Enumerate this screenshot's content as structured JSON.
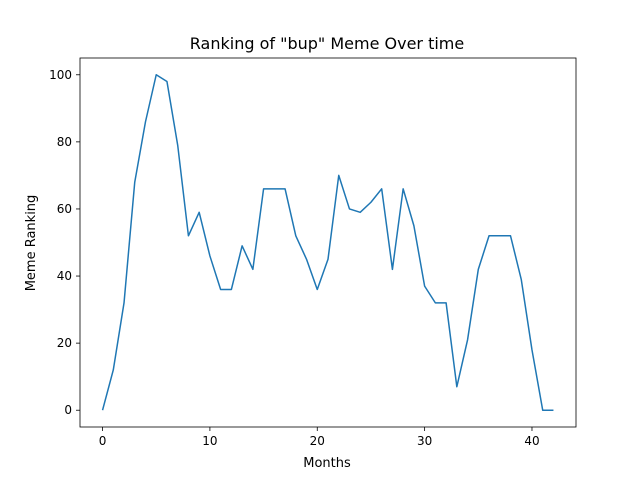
{
  "chart_data": {
    "type": "line",
    "title": "Ranking of \"bup\" Meme Over time",
    "xlabel": "Months",
    "ylabel": "Meme Ranking",
    "xlim": [
      -2.1,
      44.1
    ],
    "ylim": [
      -5,
      105
    ],
    "grid": false,
    "x_ticks": [
      0,
      10,
      20,
      30,
      40
    ],
    "y_ticks": [
      0,
      20,
      40,
      60,
      80,
      100
    ],
    "line_color": "#1f77b4",
    "series": [
      {
        "x": [
          0,
          1,
          2,
          3,
          4,
          5,
          6,
          7,
          8,
          9,
          10,
          11,
          12,
          13,
          14,
          15,
          16,
          17,
          18,
          19,
          20,
          21,
          22,
          23,
          24,
          25,
          26,
          27,
          28,
          29,
          30,
          31,
          32,
          33,
          34,
          35,
          36,
          37,
          38,
          39,
          40,
          41,
          42
        ],
        "values": [
          0,
          12,
          32,
          68,
          86,
          100,
          98,
          79,
          52,
          59,
          46,
          36,
          36,
          49,
          42,
          66,
          66,
          66,
          52,
          45,
          36,
          45,
          70,
          60,
          59,
          62,
          66,
          42,
          66,
          55,
          37,
          32,
          32,
          7,
          21,
          42,
          52,
          52,
          52,
          39,
          18,
          0,
          0
        ]
      }
    ]
  }
}
